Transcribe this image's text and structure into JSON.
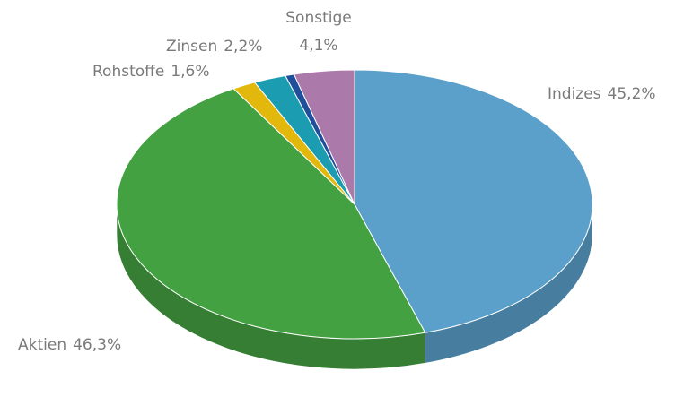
{
  "chart_data": {
    "type": "pie3d",
    "categories": [
      "Indizes",
      "Aktien",
      "Rohstoffe",
      "Zinsen",
      null,
      "Sonstige"
    ],
    "values": [
      45.2,
      46.3,
      1.6,
      2.2,
      0.6,
      4.1
    ],
    "value_labels": [
      "45,2%",
      "46,3%",
      "1,6%",
      "2,2%",
      null,
      "4,1%"
    ],
    "colors": [
      "#5ba0ca",
      "#44a141",
      "#e3b80c",
      "#1b9cb1",
      "#1f4f9a",
      "#ab7aab"
    ]
  }
}
